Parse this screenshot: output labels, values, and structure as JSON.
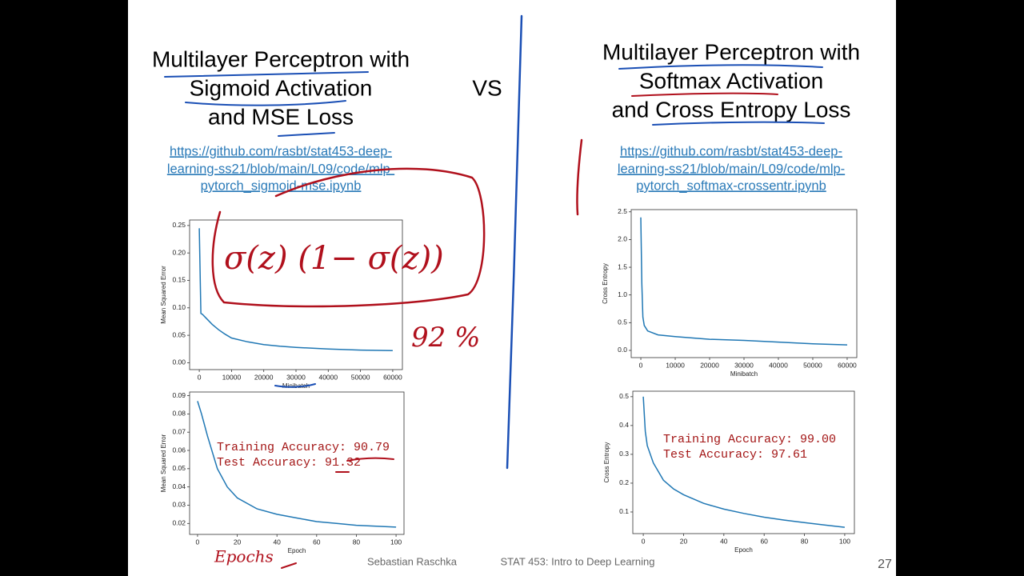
{
  "left": {
    "title": [
      "Multilayer Perceptron with",
      "Sigmoid Activation",
      "and MSE Loss"
    ],
    "link": [
      "https://github.com/rasbt/stat453-deep-",
      "learning-ss21/blob/main/L09/code/mlp-",
      "pytorch_sigmoid-mse.ipynb"
    ],
    "minibatch_chart": {
      "type": "line",
      "xlabel": "Minibatch",
      "ylabel": "Mean Squared Error",
      "color": "#1f77b4",
      "x": [
        0,
        500,
        1000,
        2000,
        4000,
        6000,
        8000,
        10000,
        15000,
        20000,
        25000,
        30000,
        40000,
        50000,
        60000
      ],
      "values": [
        0.245,
        0.09,
        0.088,
        0.082,
        0.07,
        0.06,
        0.052,
        0.045,
        0.038,
        0.033,
        0.03,
        0.028,
        0.025,
        0.023,
        0.022
      ],
      "xlim": [
        -3000,
        63000
      ],
      "ylim": [
        -0.0125,
        0.26
      ],
      "xticks": [
        0,
        10000,
        20000,
        30000,
        40000,
        50000,
        60000
      ],
      "yticks": [
        {
          "value": 0,
          "label": "0.00"
        },
        0.05,
        {
          "value": 0.1,
          "label": "0.10"
        },
        0.15,
        {
          "value": 0.2,
          "label": "0.20"
        },
        0.25
      ]
    },
    "epoch_chart": {
      "type": "line",
      "xlabel": "Epoch",
      "ylabel": "Mean Squared Error",
      "color": "#1f77b4",
      "x": [
        0,
        2,
        5,
        10,
        15,
        20,
        30,
        40,
        50,
        60,
        70,
        80,
        90,
        100
      ],
      "values": [
        0.087,
        0.08,
        0.068,
        0.05,
        0.04,
        0.034,
        0.028,
        0.025,
        0.023,
        0.021,
        0.02,
        0.019,
        0.0185,
        0.018
      ],
      "xlim": [
        -4,
        104
      ],
      "ylim": [
        0.014,
        0.092
      ],
      "xticks": [
        0,
        20,
        40,
        60,
        80,
        100
      ],
      "yticks": [
        0.02,
        0.03,
        0.04,
        0.05,
        0.06,
        0.07,
        0.08,
        0.09
      ],
      "annotations": [
        "Training Accuracy: 90.79",
        "Test Accuracy: 91.32"
      ]
    }
  },
  "vs": "VS",
  "right": {
    "title": [
      "Multilayer Perceptron with",
      "Softmax Activation",
      "and Cross Entropy Loss"
    ],
    "link": [
      "https://github.com/rasbt/stat453-deep-",
      "learning-ss21/blob/main/L09/code/mlp-",
      "pytorch_softmax-crossentr.ipynb"
    ],
    "minibatch_chart": {
      "type": "line",
      "xlabel": "Minibatch",
      "ylabel": "Cross Entropy",
      "color": "#1f77b4",
      "x": [
        0,
        300,
        600,
        1000,
        2000,
        5000,
        10000,
        20000,
        30000,
        40000,
        50000,
        60000
      ],
      "values": [
        2.4,
        1.2,
        0.6,
        0.45,
        0.35,
        0.28,
        0.25,
        0.2,
        0.18,
        0.15,
        0.12,
        0.1
      ],
      "xlim": [
        -2800,
        62800
      ],
      "ylim": [
        -0.13,
        2.54
      ],
      "xticks": [
        0,
        10000,
        20000,
        30000,
        40000,
        50000,
        60000
      ],
      "yticks": [
        {
          "value": 0,
          "label": "0.0"
        },
        0.5,
        {
          "value": 1,
          "label": "1.0"
        },
        1.5,
        {
          "value": 2,
          "label": "2.0"
        },
        2.5
      ]
    },
    "epoch_chart": {
      "type": "line",
      "xlabel": "Epoch",
      "ylabel": "Cross Entropy",
      "color": "#1f77b4",
      "x": [
        0,
        1,
        2,
        5,
        10,
        15,
        20,
        30,
        40,
        50,
        60,
        70,
        80,
        90,
        100
      ],
      "values": [
        0.5,
        0.38,
        0.33,
        0.27,
        0.21,
        0.18,
        0.16,
        0.13,
        0.11,
        0.095,
        0.082,
        0.072,
        0.063,
        0.055,
        0.047
      ],
      "xlim": [
        -5.2,
        104.8
      ],
      "ylim": [
        0.025,
        0.519
      ],
      "xticks": [
        0,
        20,
        40,
        60,
        80,
        100
      ],
      "yticks": [
        0.1,
        0.2,
        0.3,
        0.4,
        0.5
      ],
      "annotations": [
        "Training Accuracy: 99.00",
        "Test Accuracy: 97.61"
      ]
    }
  },
  "handwriting": {
    "formula": "σ(z) (1− σ(z))",
    "percent": "92 %",
    "epochs": "Epochs"
  },
  "footer": {
    "author": "Sebastian Raschka",
    "course": "STAT 453: Intro to Deep Learning",
    "page": "27"
  }
}
